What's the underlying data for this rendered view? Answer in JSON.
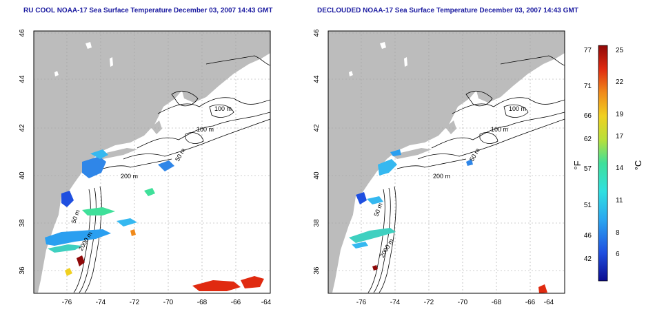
{
  "panels": [
    {
      "title": "RU COOL NOAA-17 Sea Surface Temperature December 03, 2007 14:43 GMT",
      "contour_labels": [
        "100 m",
        "100 m",
        "50 m",
        "200 m",
        "50 m",
        "2000 m"
      ]
    },
    {
      "title": "DECLOUDED NOAA-17 Sea Surface Temperature December 03, 2007 14:43 GMT",
      "contour_labels": [
        "100 m",
        "100 m",
        "50 m",
        "200 m",
        "50 m",
        "2000 m"
      ]
    }
  ],
  "axes": {
    "x_ticks": [
      "-76",
      "-74",
      "-72",
      "-70",
      "-68",
      "-66",
      "-64"
    ],
    "y_ticks": [
      "46",
      "44",
      "42",
      "40",
      "38",
      "36"
    ]
  },
  "colorbar": {
    "f_label": "°F",
    "c_label": "°C",
    "f_ticks": [
      "77",
      "71",
      "66",
      "62",
      "57",
      "51",
      "46",
      "42"
    ],
    "c_ticks": [
      "25",
      "22",
      "19",
      "17",
      "14",
      "11",
      "8",
      "6"
    ],
    "gradient": [
      "#0b0b8f",
      "#1f4fe0",
      "#2aa6f0",
      "#2fe0e0",
      "#3fe09a",
      "#b8e03a",
      "#f0d020",
      "#f08a1a",
      "#e02a10",
      "#8f0808"
    ]
  },
  "colors": {
    "land": "#bcbcbc",
    "title": "#1a1aa0",
    "contour": "#000000",
    "grid": "#a0a0a0"
  }
}
